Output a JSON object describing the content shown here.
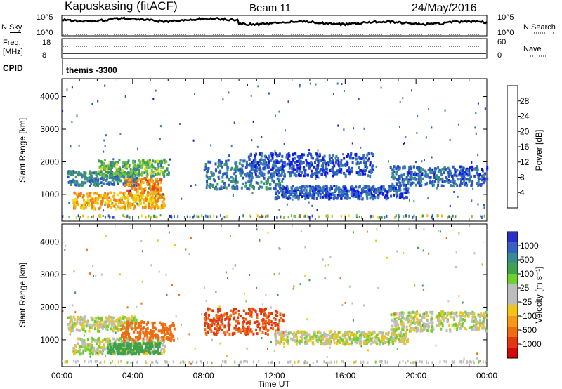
{
  "header": {
    "station": "Kapuskasing (fitACF)",
    "beam": "Beam 11",
    "date": "24/May/2016"
  },
  "top_panels": {
    "nsky_label": "N.Sky",
    "nsky_ticks": [
      "10^5",
      "10^0"
    ],
    "nsearch_label": "N.Search",
    "nsearch_ticks": [
      "10^5",
      "10^0"
    ],
    "freq_label": "Freq.",
    "freq_unit": "[MHz]",
    "freq_ticks": [
      "18",
      "8"
    ],
    "nave_label": "Nave",
    "nave_ticks": [
      "60",
      "0"
    ],
    "cpid_label": "CPID",
    "cpid_value": "themis -3300"
  },
  "axes": {
    "xlabel": "Time UT",
    "ylabel": "Slant Range [km]",
    "x_ticks": [
      "00:00",
      "04:00",
      "08:00",
      "12:00",
      "16:00",
      "20:00",
      "00:00"
    ],
    "y_ticks": [
      "1000",
      "2000",
      "3000",
      "4000"
    ]
  },
  "colorbars": {
    "power": {
      "label": "Power [dB]",
      "ticks": [
        "4",
        "8",
        "12",
        "16",
        "20",
        "24",
        "28"
      ],
      "colors": [
        "#1515e6",
        "#2856c8",
        "#3a7fa8",
        "#3f9a5f",
        "#74c43b",
        "#e8e312",
        "#f2b416",
        "#ef7f16",
        "#e54a14",
        "#d90f0f"
      ]
    },
    "velocity": {
      "label": "Velocity [m s⁻¹]",
      "ticks": [
        "1000",
        "500",
        "100",
        "25",
        "-25",
        "-100",
        "-500",
        "-1000"
      ],
      "colors": [
        "#2b2fc8",
        "#3562c3",
        "#3b8a8f",
        "#3fa24c",
        "#6fcf2f",
        "#bdbdbd",
        "#bdbdbd",
        "#f0c41a",
        "#f59a18",
        "#ef6c12",
        "#e23812",
        "#d40a0a"
      ]
    }
  },
  "chart_data": {
    "type": "heatmap",
    "x_range_hours": [
      0,
      24
    ],
    "y_range_km": [
      180,
      4550
    ],
    "panels": [
      {
        "name": "Power",
        "unit": "dB",
        "bands": [
          {
            "t0": 0.3,
            "t1": 4.2,
            "r0": 1300,
            "r1": 1750,
            "value": 10
          },
          {
            "t0": 0.6,
            "t1": 5.8,
            "r0": 600,
            "r1": 1100,
            "value": 22
          },
          {
            "t0": 3.5,
            "t1": 5.6,
            "r0": 1050,
            "r1": 1550,
            "value": 24
          },
          {
            "t0": 2.0,
            "t1": 6.0,
            "r0": 1600,
            "r1": 2100,
            "value": 14
          },
          {
            "t0": 8.0,
            "t1": 12.5,
            "r0": 1200,
            "r1": 2100,
            "value": 9
          },
          {
            "t0": 10.5,
            "t1": 17.5,
            "r0": 1600,
            "r1": 2300,
            "value": 6
          },
          {
            "t0": 12.0,
            "t1": 19.5,
            "r0": 900,
            "r1": 1300,
            "value": 7
          },
          {
            "t0": 18.5,
            "t1": 24.0,
            "r0": 1300,
            "r1": 1900,
            "value": 8
          }
        ]
      },
      {
        "name": "Velocity",
        "unit": "m/s",
        "bands": [
          {
            "t0": 0.3,
            "t1": 4.2,
            "r0": 1300,
            "r1": 1750,
            "value": 0
          },
          {
            "t0": 0.6,
            "t1": 5.8,
            "r0": 600,
            "r1": 1100,
            "value": 0
          },
          {
            "t0": 2.5,
            "t1": 5.5,
            "r0": 600,
            "r1": 950,
            "value": 150
          },
          {
            "t0": 3.3,
            "t1": 6.3,
            "r0": 1000,
            "r1": 1600,
            "value": -200
          },
          {
            "t0": 8.0,
            "t1": 12.5,
            "r0": 1200,
            "r1": 2000,
            "value": -300
          },
          {
            "t0": 12.0,
            "t1": 19.5,
            "r0": 900,
            "r1": 1300,
            "value": 0
          },
          {
            "t0": 18.5,
            "t1": 24.0,
            "r0": 1300,
            "r1": 1900,
            "value": 0
          }
        ]
      }
    ]
  }
}
